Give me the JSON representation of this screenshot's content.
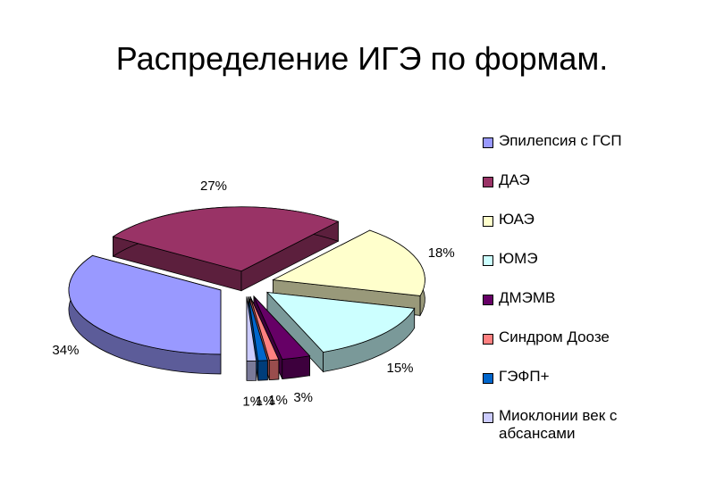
{
  "chart_data": {
    "type": "pie",
    "title": "Распределение ИГЭ по формам.",
    "categories": [
      "Эпилепсия с ГСП",
      "ДАЭ",
      "ЮАЭ",
      "ЮМЭ",
      "ДМЭМВ",
      "Синдром Доозе",
      "ГЭФП+",
      "Миоклонии век с абсансами"
    ],
    "values": [
      34,
      27,
      18,
      15,
      3,
      1,
      1,
      1
    ],
    "value_labels": [
      "34%",
      "27%",
      "18%",
      "15%",
      "3%",
      "1%",
      "1%",
      "1%"
    ],
    "colors": [
      "#9999ff",
      "#993366",
      "#ffffcc",
      "#ccffff",
      "#660066",
      "#ff8080",
      "#0066cc",
      "#ccccff"
    ],
    "legend": "right"
  }
}
